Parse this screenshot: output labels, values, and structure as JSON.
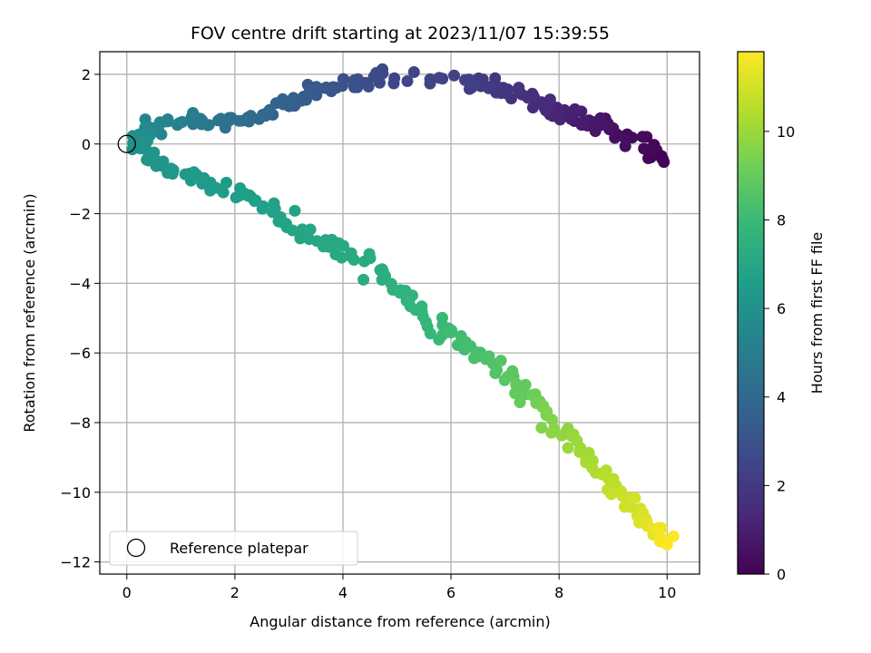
{
  "chart_data": {
    "type": "scatter",
    "title": "FOV centre drift starting at 2023/11/07 15:39:55",
    "xlabel": "Angular distance from reference (arcmin)",
    "ylabel": "Rotation from reference (arcmin)",
    "xlim": [
      -0.5,
      10.6
    ],
    "ylim": [
      -12.35,
      2.65
    ],
    "xticks": [
      0,
      2,
      4,
      6,
      8,
      10
    ],
    "yticks": [
      -12,
      -10,
      -8,
      -6,
      -4,
      -2,
      0,
      2
    ],
    "grid": true,
    "colorbar": {
      "label": "Hours from first FF file",
      "range": [
        0,
        11.8
      ],
      "ticks": [
        0,
        2,
        4,
        6,
        8,
        10
      ],
      "colormap": [
        "#440154",
        "#482878",
        "#3e4989",
        "#31688e",
        "#26828e",
        "#1f9e89",
        "#35b779",
        "#6ece58",
        "#b5de2b",
        "#fde725"
      ]
    },
    "reference_point": {
      "x": 0,
      "y": 0,
      "label": "Reference platepar"
    },
    "legend_position": "lower-left",
    "drift_path": [
      {
        "x": 9.95,
        "y": -0.55,
        "t": 0.0
      },
      {
        "x": 9.7,
        "y": -0.1,
        "t": 0.2
      },
      {
        "x": 9.0,
        "y": 0.45,
        "t": 0.5
      },
      {
        "x": 8.6,
        "y": 0.6,
        "t": 0.8
      },
      {
        "x": 8.1,
        "y": 0.85,
        "t": 1.1
      },
      {
        "x": 7.7,
        "y": 1.1,
        "t": 1.4
      },
      {
        "x": 7.2,
        "y": 1.45,
        "t": 1.7
      },
      {
        "x": 6.6,
        "y": 1.7,
        "t": 2.0
      },
      {
        "x": 6.2,
        "y": 1.75,
        "t": 2.3
      },
      {
        "x": 4.7,
        "y": 1.9,
        "t": 2.6
      },
      {
        "x": 4.2,
        "y": 1.75,
        "t": 2.9
      },
      {
        "x": 3.6,
        "y": 1.6,
        "t": 3.2
      },
      {
        "x": 3.1,
        "y": 1.3,
        "t": 3.5
      },
      {
        "x": 2.6,
        "y": 0.9,
        "t": 3.9
      },
      {
        "x": 1.9,
        "y": 0.6,
        "t": 4.4
      },
      {
        "x": 1.2,
        "y": 0.75,
        "t": 4.9
      },
      {
        "x": 0.6,
        "y": 0.55,
        "t": 5.4
      },
      {
        "x": 0.15,
        "y": 0.25,
        "t": 5.8
      },
      {
        "x": 0.4,
        "y": -0.45,
        "t": 6.1
      },
      {
        "x": 1.0,
        "y": -0.8,
        "t": 6.3
      },
      {
        "x": 1.8,
        "y": -1.3,
        "t": 6.5
      },
      {
        "x": 2.6,
        "y": -1.8,
        "t": 6.7
      },
      {
        "x": 3.2,
        "y": -2.4,
        "t": 6.9
      },
      {
        "x": 3.9,
        "y": -3.0,
        "t": 7.1
      },
      {
        "x": 4.6,
        "y": -3.6,
        "t": 7.3
      },
      {
        "x": 5.2,
        "y": -4.4,
        "t": 7.6
      },
      {
        "x": 5.7,
        "y": -5.2,
        "t": 7.9
      },
      {
        "x": 6.3,
        "y": -5.8,
        "t": 8.2
      },
      {
        "x": 6.9,
        "y": -6.5,
        "t": 8.6
      },
      {
        "x": 7.4,
        "y": -7.2,
        "t": 9.0
      },
      {
        "x": 7.9,
        "y": -8.0,
        "t": 9.6
      },
      {
        "x": 8.4,
        "y": -8.8,
        "t": 10.1
      },
      {
        "x": 8.9,
        "y": -9.6,
        "t": 10.5
      },
      {
        "x": 9.3,
        "y": -10.3,
        "t": 10.9
      },
      {
        "x": 9.7,
        "y": -11.0,
        "t": 11.3
      },
      {
        "x": 10.0,
        "y": -11.5,
        "t": 11.8
      }
    ],
    "points_per_segment": 11
  }
}
